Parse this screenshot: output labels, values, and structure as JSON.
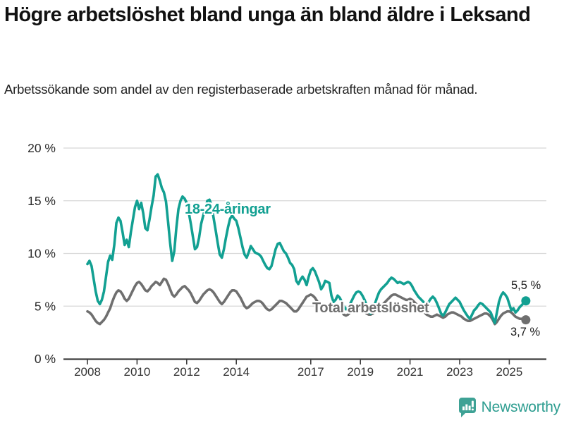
{
  "header": {
    "title": "Högre arbetslöshet bland unga än bland äldre i Leksand",
    "subtitle": "Arbetssökande som andel av den registerbaserade arbetskraften månad för månad."
  },
  "annotations": {
    "youth_label": "18-24-åringar",
    "total_label": "Total arbetslöshet",
    "youth_end_value": "5,5 %",
    "total_end_value": "3,7 %"
  },
  "footer": {
    "brand": "Newsworthy"
  },
  "colors": {
    "youth": "#12a092",
    "total": "#6f6f6f",
    "grid": "#d8d8d8",
    "axis": "#3d3d3d",
    "tick_text": "#333333",
    "logo": "#2d9d90"
  },
  "chart_data": {
    "type": "line",
    "title": "Högre arbetslöshet bland unga än bland äldre i Leksand",
    "subtitle": "Arbetssökande som andel av den registerbaserade arbetskraften månad för månad.",
    "x_unit": "year-month, monthly from 2008-01 to 2025-09",
    "x_start_year": 2008,
    "x_ticks": [
      2008,
      2010,
      2012,
      2014,
      2017,
      2019,
      2021,
      2023,
      2025
    ],
    "y_ticks": [
      0,
      5,
      10,
      15,
      20
    ],
    "y_tick_suffix": " %",
    "ylim": [
      0,
      21
    ],
    "grid": "horizontal",
    "legend": "inline-labels",
    "series": [
      {
        "name": "18-24-åringar",
        "color": "#12a092",
        "end_label": "5,5 %",
        "values": [
          9.0,
          9.3,
          8.8,
          7.6,
          6.4,
          5.5,
          5.2,
          5.6,
          6.4,
          7.8,
          9.2,
          9.8,
          9.4,
          10.8,
          12.9,
          13.4,
          13.1,
          12.0,
          10.8,
          11.3,
          10.6,
          12.0,
          13.2,
          14.4,
          15.0,
          14.2,
          14.8,
          13.8,
          12.4,
          12.2,
          13.2,
          14.4,
          15.5,
          17.3,
          17.5,
          16.9,
          16.2,
          15.8,
          14.9,
          13.0,
          11.0,
          9.3,
          10.2,
          12.4,
          14.2,
          15.0,
          15.4,
          15.2,
          14.8,
          13.9,
          12.8,
          11.6,
          10.4,
          10.6,
          11.5,
          12.8,
          13.6,
          14.3,
          15.0,
          15.1,
          14.6,
          13.4,
          12.2,
          11.0,
          9.9,
          9.6,
          10.4,
          11.5,
          12.5,
          13.3,
          13.6,
          13.3,
          13.1,
          12.4,
          11.5,
          10.6,
          9.9,
          9.6,
          10.1,
          10.7,
          10.4,
          10.1,
          10.0,
          9.9,
          9.7,
          9.3,
          8.9,
          8.6,
          8.5,
          8.8,
          9.6,
          10.4,
          10.9,
          11.0,
          10.6,
          10.2,
          10.0,
          9.6,
          9.1,
          8.9,
          8.5,
          7.4,
          7.1,
          7.5,
          7.8,
          7.5,
          7.0,
          7.8,
          8.4,
          8.6,
          8.3,
          7.8,
          7.3,
          6.6,
          6.9,
          7.4,
          7.3,
          7.2,
          6.0,
          5.4,
          5.6,
          6.0,
          5.8,
          5.4,
          5.0,
          4.7,
          4.8,
          5.2,
          5.6,
          6.0,
          6.3,
          6.4,
          6.3,
          6.0,
          5.6,
          5.1,
          4.6,
          4.3,
          4.6,
          5.2,
          5.8,
          6.3,
          6.6,
          6.8,
          7.0,
          7.2,
          7.5,
          7.7,
          7.6,
          7.4,
          7.2,
          7.3,
          7.2,
          7.1,
          7.2,
          7.3,
          7.2,
          6.9,
          6.5,
          6.2,
          5.9,
          5.7,
          5.5,
          5.3,
          5.0,
          5.4,
          5.7,
          5.9,
          5.7,
          5.3,
          4.8,
          4.3,
          4.1,
          4.4,
          4.8,
          5.2,
          5.4,
          5.6,
          5.8,
          5.6,
          5.4,
          5.0,
          4.6,
          4.3,
          4.0,
          3.8,
          4.2,
          4.6,
          4.8,
          5.1,
          5.3,
          5.2,
          5.0,
          4.8,
          4.6,
          4.4,
          3.9,
          3.4,
          4.4,
          5.4,
          6.0,
          6.3,
          6.1,
          5.8,
          5.2,
          4.6,
          4.8,
          4.4,
          4.6,
          4.9,
          5.1,
          5.3,
          5.5
        ]
      },
      {
        "name": "Total arbetslöshet",
        "color": "#6f6f6f",
        "end_label": "3,7 %",
        "values": [
          4.5,
          4.4,
          4.2,
          3.9,
          3.6,
          3.4,
          3.3,
          3.5,
          3.7,
          4.0,
          4.4,
          4.8,
          5.4,
          5.9,
          6.3,
          6.5,
          6.4,
          6.1,
          5.7,
          5.5,
          5.7,
          6.1,
          6.5,
          6.9,
          7.2,
          7.3,
          7.1,
          6.8,
          6.5,
          6.4,
          6.6,
          6.9,
          7.1,
          7.3,
          7.2,
          7.0,
          7.3,
          7.6,
          7.5,
          7.1,
          6.6,
          6.1,
          5.9,
          6.1,
          6.4,
          6.6,
          6.8,
          6.9,
          6.7,
          6.5,
          6.2,
          5.8,
          5.4,
          5.3,
          5.5,
          5.8,
          6.1,
          6.3,
          6.5,
          6.6,
          6.5,
          6.3,
          6.0,
          5.7,
          5.4,
          5.2,
          5.4,
          5.7,
          6.0,
          6.3,
          6.5,
          6.5,
          6.4,
          6.1,
          5.8,
          5.4,
          5.0,
          4.8,
          4.9,
          5.1,
          5.3,
          5.4,
          5.5,
          5.5,
          5.4,
          5.2,
          4.9,
          4.7,
          4.6,
          4.7,
          4.9,
          5.1,
          5.3,
          5.5,
          5.5,
          5.4,
          5.3,
          5.1,
          4.9,
          4.7,
          4.5,
          4.5,
          4.7,
          5.0,
          5.3,
          5.6,
          5.9,
          6.0,
          6.1,
          6.0,
          5.8,
          5.5,
          5.1,
          4.7,
          4.6,
          4.7,
          4.8,
          4.9,
          4.8,
          4.7,
          4.8,
          4.9,
          4.7,
          4.5,
          4.2,
          4.1,
          4.2,
          4.4,
          4.5,
          4.6,
          4.7,
          4.7,
          4.8,
          4.7,
          4.5,
          4.3,
          4.2,
          4.2,
          4.3,
          4.5,
          4.7,
          4.9,
          5.0,
          5.2,
          5.4,
          5.6,
          5.8,
          6.0,
          6.1,
          6.1,
          6.0,
          5.9,
          5.8,
          5.7,
          5.6,
          5.6,
          5.7,
          5.6,
          5.4,
          5.2,
          5.0,
          4.8,
          4.6,
          4.4,
          4.2,
          4.1,
          4.0,
          4.0,
          4.1,
          4.2,
          4.1,
          4.0,
          3.9,
          4.0,
          4.2,
          4.3,
          4.4,
          4.4,
          4.3,
          4.2,
          4.1,
          4.0,
          3.8,
          3.7,
          3.6,
          3.6,
          3.7,
          3.8,
          3.9,
          4.0,
          4.1,
          4.2,
          4.3,
          4.3,
          4.2,
          4.0,
          3.7,
          3.3,
          3.5,
          3.8,
          4.1,
          4.3,
          4.4,
          4.5,
          4.5,
          4.4,
          4.2,
          4.0,
          3.9,
          3.8,
          3.8,
          3.7,
          3.7
        ]
      }
    ]
  }
}
